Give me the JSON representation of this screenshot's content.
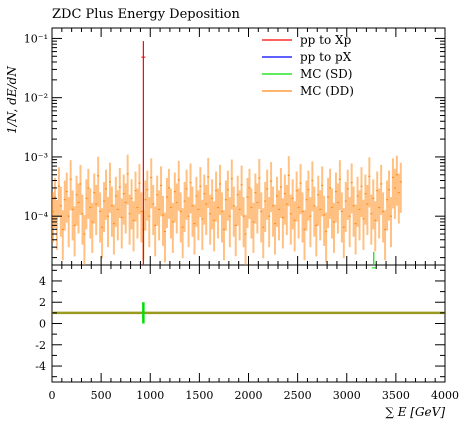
{
  "chart_data": {
    "type": "line",
    "title": "ZDC Plus Energy Deposition",
    "ylabel": "1/N, dE/dN",
    "xlabel": "∑ E [GeV]",
    "xlim": [
      0,
      4000
    ],
    "ylim_top": [
      1.5e-05,
      0.15
    ],
    "ylim_bottom": [
      -5.5,
      5.5
    ],
    "y_scale_top": "log",
    "x_ticks": [
      "0",
      "500",
      "1000",
      "1500",
      "2000",
      "2500",
      "3000",
      "3500",
      "4000"
    ],
    "y_ticks_top": [
      "10⁻¹",
      "10⁻²",
      "10⁻³",
      "10⁻⁴"
    ],
    "y_ticks_bottom": [
      "4",
      "2",
      "0",
      "-2",
      "-4"
    ],
    "legend_placement": "top-right",
    "legend": [
      {
        "label": "pp to Xp",
        "color": "#ff0000"
      },
      {
        "label": "pp to pX",
        "color": "#0000ff"
      },
      {
        "label": "MC (SD)",
        "color": "#00e000"
      },
      {
        "label": "MC (DD)",
        "color": "#ff8c1a"
      }
    ],
    "series": [
      {
        "name": "pp to Xp",
        "color": "#ff0000",
        "x": [
          930
        ],
        "y": [
          0.09
        ]
      },
      {
        "name": "MC (SD)",
        "color": "#00e000",
        "x": [
          3275
        ],
        "y": [
          2.5e-05
        ]
      },
      {
        "name": "MC (DD)",
        "color": "#ff8c1a",
        "bin_width": 20,
        "x_start": 10,
        "y": [
          0.00012,
          0.00021,
          9e-05,
          0.00032,
          0.00015,
          6e-05,
          0.00019,
          0.00026,
          0.0001,
          0.00042,
          0.00013,
          7e-05,
          0.00023,
          0.00017,
          0.00035,
          0.00011,
          5e-05,
          0.0002,
          0.0003,
          0.00014,
          8e-05,
          0.00025,
          0.00016,
          0.00048,
          0.00012,
          6.5e-05,
          0.00018,
          0.00029,
          0.0001,
          0.00038,
          0.00015,
          7.5e-05,
          0.00022,
          0.00013,
          0.00031,
          9.5e-05,
          0.00024,
          0.00017,
          0.00052,
          0.00011,
          0.0002,
          8.5e-05,
          0.00027,
          0.00014,
          0.00036,
          0.00012,
          6e-05,
          0.00019,
          0.00028,
          0.0001,
          0.00045,
          0.00016,
          7e-05,
          0.00023,
          0.00013,
          0.00033,
          0.000105,
          5.5e-05,
          0.00021,
          0.0003,
          0.00014,
          8e-05,
          0.00026,
          0.00017,
          0.00041,
          0.00012,
          6.5e-05,
          0.00018,
          0.00029,
          0.0001,
          0.00037,
          0.00015,
          7.5e-05,
          0.00022,
          0.00013,
          0.00032,
          9e-05,
          0.00024,
          0.00016,
          0.00046,
          0.00011,
          0.0002,
          8.5e-05,
          0.00027,
          0.00014,
          0.00035,
          0.00012,
          6e-05,
          0.00019,
          0.00028,
          0.0001,
          0.00043,
          0.00015,
          7e-05,
          0.00023,
          0.00013,
          0.00034,
          0.0001,
          5e-05,
          0.00021,
          0.0003,
          0.00014,
          8e-05,
          0.00025,
          0.00017,
          0.00044,
          0.00012,
          6.5e-05,
          0.00018,
          0.00029,
          0.0001,
          0.00039,
          0.00015,
          7.5e-05,
          0.00022,
          0.00013,
          0.00031,
          9.5e-05,
          0.00024,
          0.00016,
          0.00049,
          0.00011,
          0.0002,
          8.5e-05,
          0.00027,
          0.00014,
          0.00036,
          0.00012,
          6e-05,
          0.00019,
          0.00028,
          0.0001,
          0.0004,
          0.00015,
          7e-05,
          0.00023,
          0.00013,
          0.00033,
          0.000105,
          5.5e-05,
          0.00021,
          0.0003,
          0.00014,
          8e-05,
          0.00026,
          0.00017,
          0.00042,
          0.00012,
          6.5e-05,
          0.00018,
          0.00029,
          0.0001,
          0.00037,
          0.00015,
          7.5e-05,
          0.00022,
          0.00013,
          0.00032,
          9e-05,
          0.00024,
          0.00016,
          0.00047,
          0.00011,
          0.0002,
          8.5e-05,
          0.00027,
          0.00014,
          0.00035,
          0.00012,
          6e-05,
          0.00019,
          0.00028,
          0.0001,
          0.00045,
          0.0003,
          0.0005,
          0.00025,
          0.00038
        ]
      }
    ],
    "ratio_band": {
      "value": 1,
      "color": "#9a9a20"
    },
    "ratio_marks": [
      {
        "x": 930,
        "y_low": 0.0,
        "y_high": 2.0,
        "color": "#00e000"
      }
    ]
  }
}
